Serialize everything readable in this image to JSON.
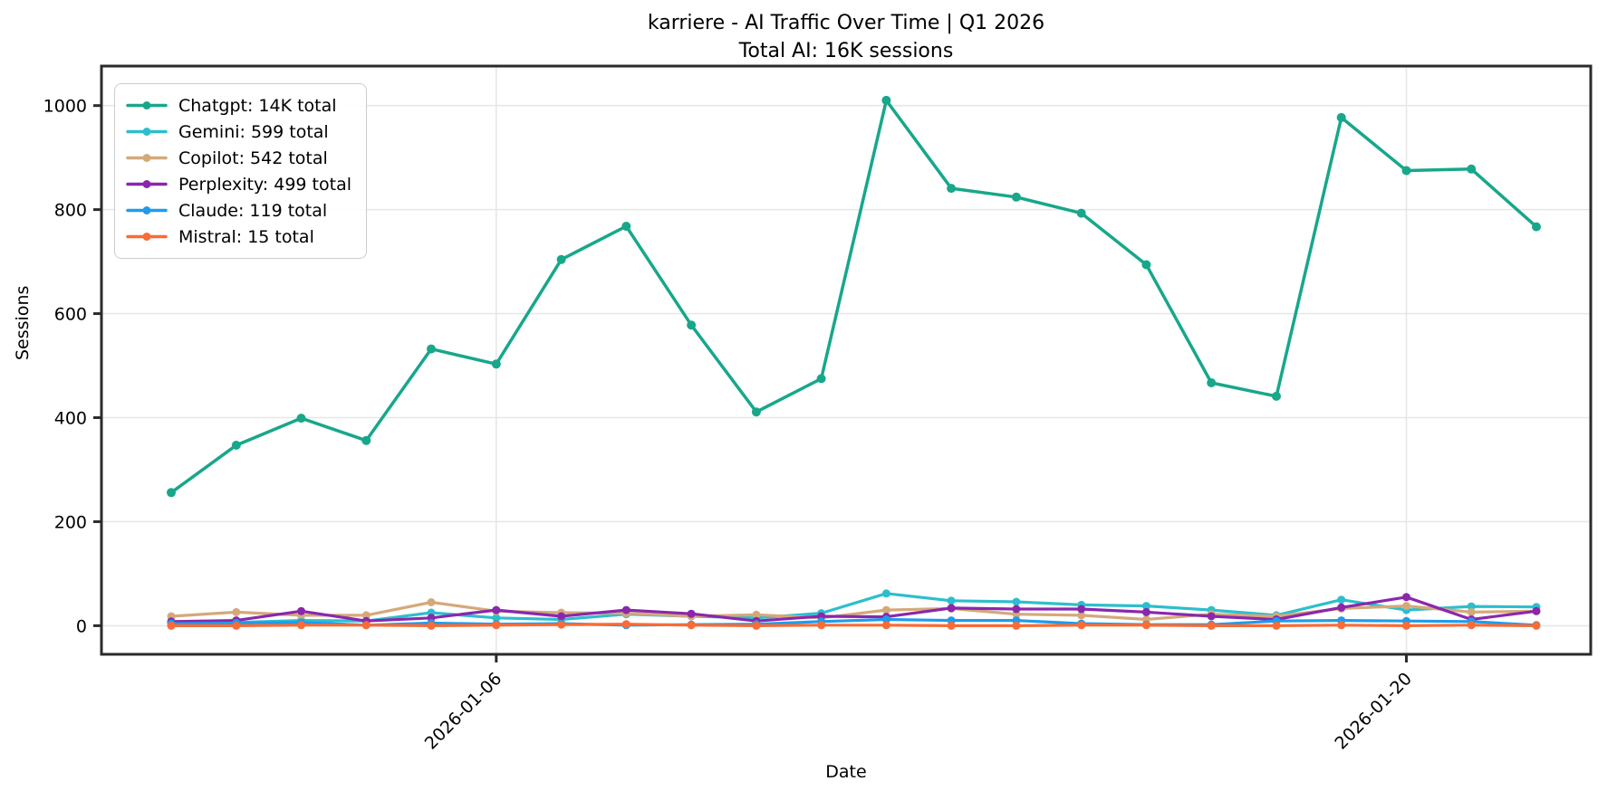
{
  "chart_data": {
    "type": "line",
    "title": "karriere - AI Traffic Over Time | Q1 2026",
    "subtitle": "Total AI: 16K sessions",
    "xlabel": "Date",
    "ylabel": "Sessions",
    "x": [
      "2026-01-01",
      "2026-01-02",
      "2026-01-03",
      "2026-01-04",
      "2026-01-05",
      "2026-01-06",
      "2026-01-07",
      "2026-01-08",
      "2026-01-09",
      "2026-01-10",
      "2026-01-11",
      "2026-01-12",
      "2026-01-13",
      "2026-01-14",
      "2026-01-15",
      "2026-01-16",
      "2026-01-17",
      "2026-01-18",
      "2026-01-19",
      "2026-01-20",
      "2026-01-21",
      "2026-01-22"
    ],
    "x_tick_labels": [
      "2026-01-06",
      "2026-01-20"
    ],
    "y_ticks": [
      0,
      200,
      400,
      600,
      800,
      1000
    ],
    "ylim": [
      -55,
      1076
    ],
    "grid": true,
    "legend_position": "upper-left",
    "series": [
      {
        "name": "Chatgpt",
        "legend_label": "Chatgpt: 14K total",
        "total": "14K",
        "color": "#17a78b",
        "values": [
          256,
          347,
          399,
          356,
          532,
          503,
          704,
          768,
          578,
          411,
          475,
          1010,
          841,
          824,
          793,
          694,
          467,
          441,
          977,
          875,
          878,
          767
        ]
      },
      {
        "name": "Gemini",
        "legend_label": "Gemini: 599 total",
        "total": "599",
        "color": "#2dbecd",
        "values": [
          6,
          6,
          10,
          9,
          25,
          15,
          12,
          22,
          18,
          15,
          24,
          62,
          48,
          46,
          40,
          38,
          30,
          20,
          50,
          30,
          37,
          36
        ]
      },
      {
        "name": "Copilot",
        "legend_label": "Copilot: 542 total",
        "total": "542",
        "color": "#d4a97a",
        "values": [
          18,
          26,
          20,
          20,
          45,
          28,
          25,
          24,
          18,
          21,
          15,
          30,
          33,
          22,
          20,
          12,
          22,
          18,
          33,
          38,
          26,
          28
        ]
      },
      {
        "name": "Perplexity",
        "legend_label": "Perplexity: 499 total",
        "total": "499",
        "color": "#8a27ad",
        "values": [
          8,
          10,
          28,
          9,
          15,
          30,
          18,
          30,
          23,
          9,
          18,
          17,
          34,
          32,
          32,
          26,
          18,
          12,
          35,
          55,
          12,
          28
        ]
      },
      {
        "name": "Claude",
        "legend_label": "Claude: 119 total",
        "total": "119",
        "color": "#1e9ceb",
        "values": [
          4,
          5,
          6,
          1,
          5,
          3,
          4,
          1,
          2,
          3,
          8,
          12,
          10,
          10,
          4,
          2,
          2,
          9,
          10,
          9,
          8,
          1
        ]
      },
      {
        "name": "Mistral",
        "legend_label": "Mistral: 15 total",
        "total": "15",
        "color": "#fa6b35",
        "values": [
          0,
          0,
          1,
          1,
          0,
          1,
          2,
          3,
          1,
          0,
          1,
          1,
          0,
          0,
          1,
          1,
          0,
          0,
          1,
          0,
          1,
          0
        ]
      }
    ]
  }
}
